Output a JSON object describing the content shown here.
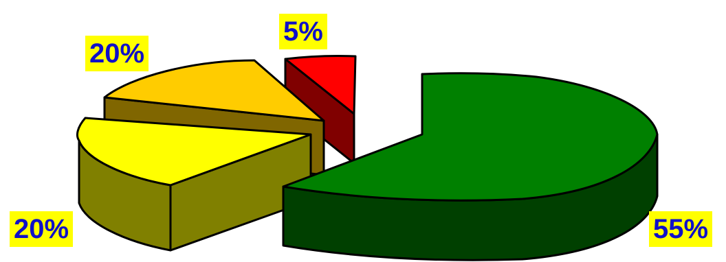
{
  "chart_data": {
    "type": "pie",
    "style": "3d-exploded",
    "slices": [
      {
        "label": "55%",
        "value": 55,
        "color": "#008000",
        "side_color": "#004000"
      },
      {
        "label": "20%",
        "value": 20,
        "color": "#ffff00",
        "side_color": "#808000"
      },
      {
        "label": "20%",
        "value": 20,
        "color": "#ffcc00",
        "side_color": "#806600"
      },
      {
        "label": "5%",
        "value": 5,
        "color": "#ff0000",
        "side_color": "#800000"
      }
    ],
    "label_style": {
      "background": "#ffff00",
      "text_color": "#1010c8"
    },
    "legend": "none",
    "title": ""
  }
}
